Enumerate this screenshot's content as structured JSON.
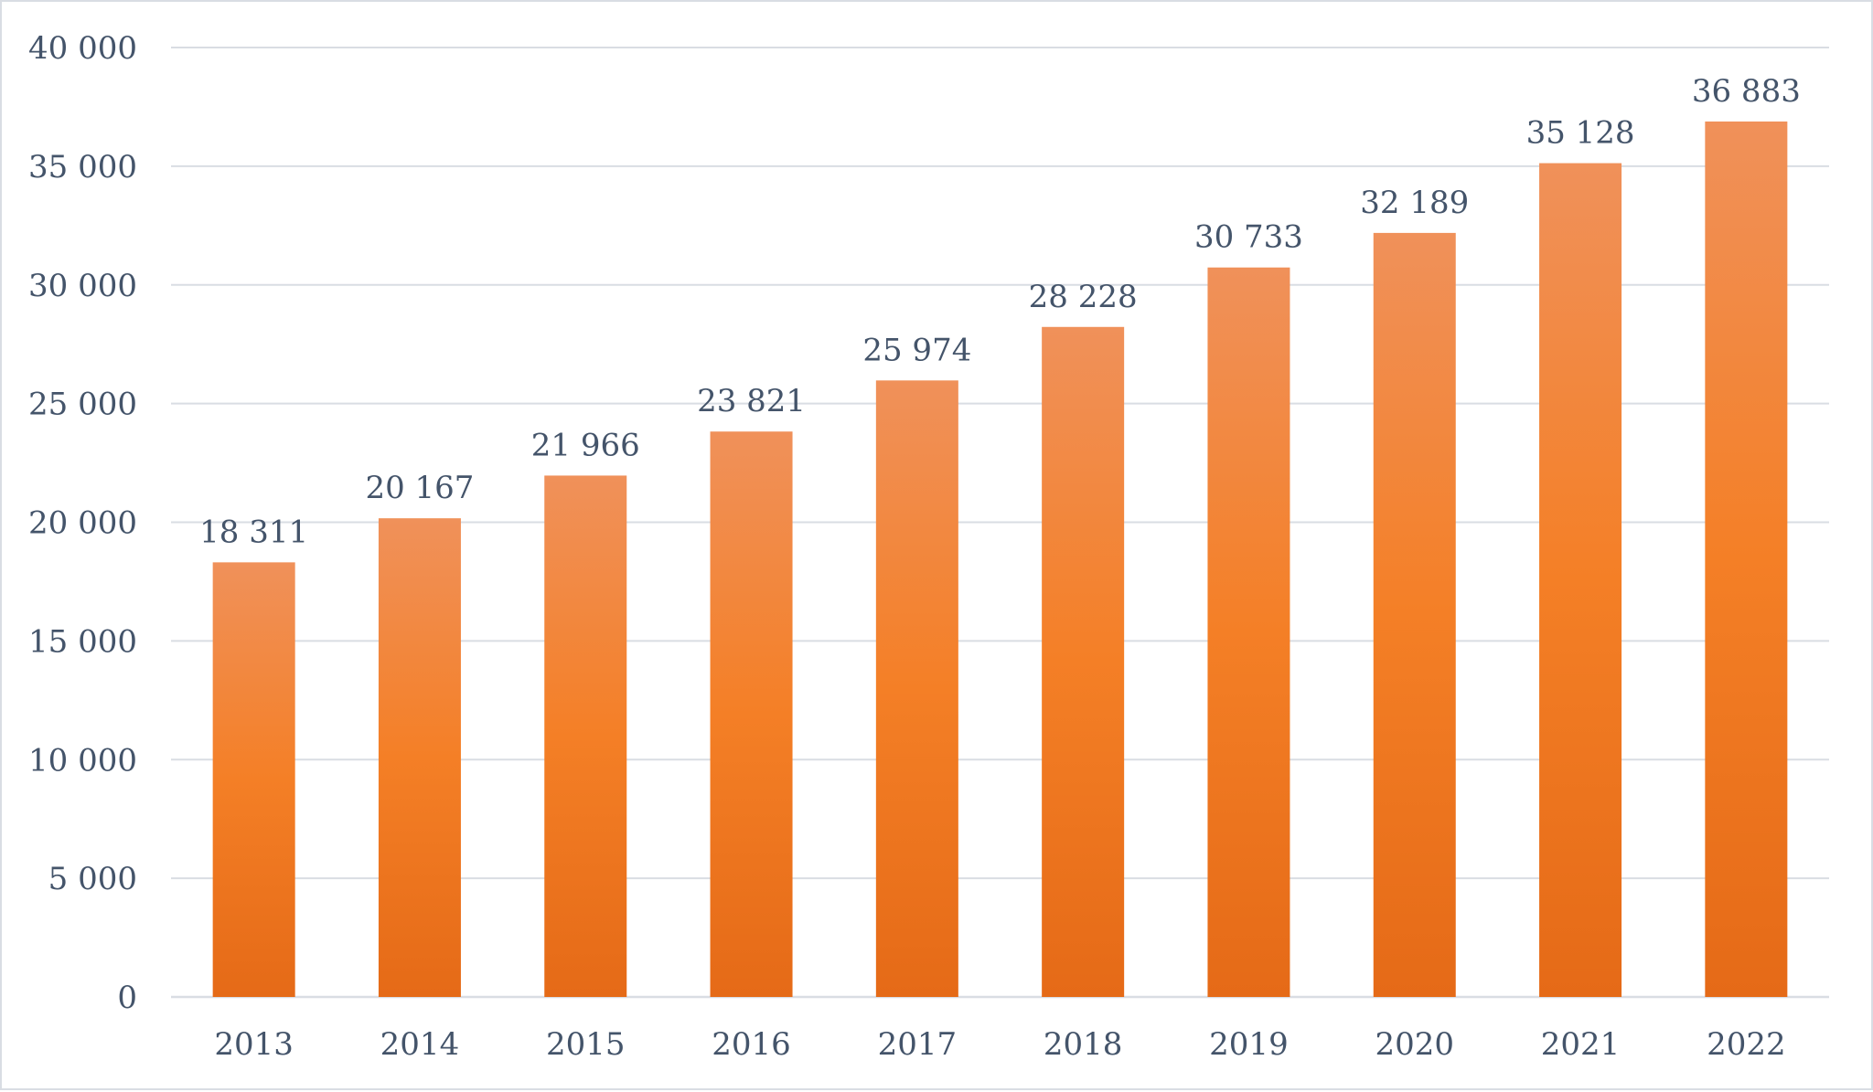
{
  "chart_data": {
    "type": "bar",
    "categories": [
      "2013",
      "2014",
      "2015",
      "2016",
      "2017",
      "2018",
      "2019",
      "2020",
      "2021",
      "2022"
    ],
    "values": [
      18311,
      20167,
      21966,
      23821,
      25974,
      28228,
      30733,
      32189,
      35128,
      36883
    ],
    "data_labels": [
      "18 311",
      "20 167",
      "21 966",
      "23 821",
      "25 974",
      "28 228",
      "30 733",
      "32 189",
      "35 128",
      "36 883"
    ],
    "yticks": [
      0,
      5000,
      10000,
      15000,
      20000,
      25000,
      30000,
      35000,
      40000
    ],
    "ytick_labels": [
      "0",
      "5 000",
      "10 000",
      "15 000",
      "20 000",
      "25 000",
      "30 000",
      "35 000",
      "40 000"
    ],
    "ylim": [
      0,
      40000
    ],
    "title": "",
    "xlabel": "",
    "ylabel": "",
    "grid": true,
    "legend": "none",
    "colors": {
      "bar_top": "#f0915a",
      "bar_mid": "#f47f26",
      "bar_bottom": "#e56a17",
      "text": "#44546a",
      "grid": "#d9dde3"
    }
  }
}
